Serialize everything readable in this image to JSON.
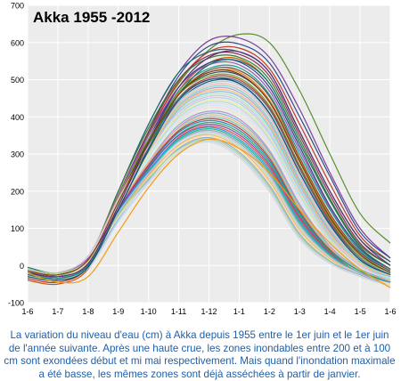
{
  "chart_data": {
    "type": "line",
    "title": "Akka 1955 -2012",
    "xlabel": "",
    "ylabel": "",
    "x_ticks": [
      "1-6",
      "1-7",
      "1-8",
      "1-9",
      "1-10",
      "1-11",
      "1-12",
      "1-1",
      "1-2",
      "1-3",
      "1-4",
      "1-5",
      "1-6"
    ],
    "xlim": [
      0,
      12
    ],
    "ylim": [
      -100,
      700
    ],
    "y_ticks": [
      -100,
      0,
      100,
      200,
      300,
      400,
      500,
      600,
      700
    ],
    "grid": true,
    "legend": "none",
    "series_count": 58,
    "peak_range": [
      340,
      625
    ],
    "series": [
      {
        "color": "#5b8c2e",
        "values": [
          -15,
          -30,
          5,
          170,
          355,
          490,
          580,
          622,
          600,
          470,
          300,
          140,
          60
        ]
      },
      {
        "color": "#7b3f98",
        "values": [
          -10,
          -25,
          10,
          200,
          380,
          520,
          605,
          612,
          560,
          420,
          250,
          100,
          20
        ]
      },
      {
        "color": "#2e4a8c",
        "values": [
          -20,
          -35,
          5,
          180,
          360,
          510,
          590,
          596,
          545,
          400,
          240,
          90,
          20
        ]
      },
      {
        "color": "#c0392b",
        "values": [
          -30,
          -40,
          0,
          175,
          350,
          495,
          575,
          585,
          530,
          380,
          220,
          80,
          10
        ]
      },
      {
        "color": "#1f6f6f",
        "values": [
          -5,
          -20,
          20,
          200,
          380,
          520,
          575,
          575,
          520,
          360,
          200,
          70,
          10
        ]
      },
      {
        "color": "#8c2e5b",
        "values": [
          -25,
          -30,
          10,
          190,
          360,
          500,
          565,
          568,
          510,
          350,
          190,
          60,
          0
        ]
      },
      {
        "color": "#3a7d3a",
        "values": [
          -20,
          -25,
          15,
          200,
          370,
          500,
          558,
          560,
          500,
          340,
          180,
          55,
          0
        ]
      },
      {
        "color": "#d35400",
        "values": [
          -40,
          -50,
          -10,
          150,
          320,
          470,
          545,
          555,
          490,
          330,
          175,
          50,
          -10
        ]
      },
      {
        "color": "#2c3e90",
        "values": [
          -15,
          -30,
          0,
          170,
          340,
          480,
          545,
          548,
          480,
          320,
          160,
          45,
          -10
        ]
      },
      {
        "color": "#9b59b6",
        "values": [
          -10,
          -25,
          20,
          190,
          350,
          480,
          540,
          540,
          470,
          310,
          155,
          40,
          -10
        ]
      },
      {
        "color": "#16a085",
        "values": [
          -20,
          -35,
          5,
          170,
          330,
          470,
          530,
          532,
          460,
          300,
          150,
          40,
          -15
        ]
      },
      {
        "color": "#6d4c41",
        "values": [
          -30,
          -40,
          -5,
          160,
          320,
          460,
          525,
          525,
          455,
          290,
          140,
          35,
          -15
        ]
      },
      {
        "color": "#e67e22",
        "values": [
          -25,
          -35,
          10,
          170,
          330,
          465,
          520,
          520,
          445,
          285,
          135,
          30,
          -20
        ]
      },
      {
        "color": "#34495e",
        "values": [
          -15,
          -30,
          10,
          175,
          335,
          460,
          515,
          512,
          440,
          280,
          130,
          30,
          -20
        ]
      },
      {
        "color": "#7a9f35",
        "values": [
          -10,
          -20,
          25,
          185,
          340,
          460,
          510,
          505,
          430,
          270,
          125,
          25,
          -20
        ]
      },
      {
        "color": "#b03a2e",
        "values": [
          -35,
          -45,
          -5,
          150,
          310,
          450,
          505,
          500,
          425,
          265,
          120,
          20,
          -25
        ]
      },
      {
        "color": "#5d6d7e",
        "values": [
          -20,
          -30,
          15,
          170,
          325,
          450,
          500,
          495,
          420,
          260,
          115,
          20,
          -25
        ]
      },
      {
        "color": "#1a5276",
        "values": [
          -25,
          -35,
          5,
          160,
          315,
          440,
          495,
          490,
          410,
          250,
          110,
          15,
          -25
        ]
      },
      {
        "color": "#a9cce3",
        "values": [
          -15,
          -25,
          20,
          175,
          320,
          440,
          490,
          485,
          405,
          245,
          105,
          15,
          -25
        ]
      },
      {
        "color": "#f5b7b1",
        "values": [
          -10,
          -25,
          25,
          180,
          320,
          435,
          485,
          478,
          400,
          240,
          100,
          10,
          -30
        ]
      },
      {
        "color": "#76d7c4",
        "values": [
          -20,
          -30,
          15,
          165,
          310,
          430,
          480,
          472,
          392,
          232,
          95,
          10,
          -30
        ]
      },
      {
        "color": "#c39bd3",
        "values": [
          -30,
          -40,
          5,
          155,
          300,
          425,
          475,
          466,
          385,
          225,
          90,
          5,
          -30
        ]
      },
      {
        "color": "#f8c471",
        "values": [
          -15,
          -25,
          20,
          170,
          310,
          425,
          470,
          460,
          378,
          220,
          85,
          5,
          -30
        ]
      },
      {
        "color": "#85c1e9",
        "values": [
          -25,
          -35,
          10,
          160,
          300,
          420,
          465,
          455,
          372,
          215,
          80,
          0,
          -30
        ]
      },
      {
        "color": "#abebc6",
        "values": [
          -20,
          -30,
          15,
          162,
          300,
          415,
          460,
          448,
          365,
          210,
          78,
          0,
          -35
        ]
      },
      {
        "color": "#d7bde2",
        "values": [
          -10,
          -20,
          25,
          172,
          305,
          412,
          455,
          442,
          358,
          205,
          75,
          0,
          -35
        ]
      },
      {
        "color": "#aed6f1",
        "values": [
          -30,
          -40,
          5,
          150,
          290,
          405,
          450,
          436,
          352,
          200,
          70,
          -5,
          -35
        ]
      },
      {
        "color": "#f9e79f",
        "values": [
          -15,
          -25,
          20,
          165,
          298,
          402,
          445,
          430,
          345,
          195,
          68,
          -5,
          -35
        ]
      },
      {
        "color": "#a3e4d7",
        "values": [
          -20,
          -30,
          12,
          158,
          292,
          398,
          440,
          424,
          340,
          190,
          65,
          -5,
          -35
        ]
      },
      {
        "color": "#e8daef",
        "values": [
          -25,
          -35,
          8,
          152,
          285,
          392,
          435,
          418,
          335,
          185,
          62,
          -5,
          -40
        ]
      },
      {
        "color": "#d4e6f1",
        "values": [
          -10,
          -20,
          22,
          165,
          292,
          390,
          430,
          412,
          330,
          180,
          60,
          -10,
          -40
        ]
      },
      {
        "color": "#fadbd8",
        "values": [
          -30,
          -40,
          0,
          145,
          278,
          385,
          425,
          405,
          322,
          175,
          58,
          -10,
          -40
        ]
      },
      {
        "color": "#d5f5e3",
        "values": [
          -15,
          -25,
          18,
          158,
          285,
          382,
          420,
          400,
          316,
          170,
          55,
          -10,
          -40
        ]
      },
      {
        "color": "#bb8fce",
        "values": [
          -20,
          -30,
          10,
          150,
          278,
          378,
          415,
          394,
          310,
          165,
          52,
          -10,
          -40
        ]
      },
      {
        "color": "#7fb3d5",
        "values": [
          -25,
          -35,
          5,
          146,
          272,
          372,
          410,
          388,
          305,
          160,
          50,
          -10,
          -40
        ]
      },
      {
        "color": "#f0b27a",
        "values": [
          -10,
          -20,
          20,
          158,
          278,
          370,
          405,
          382,
          300,
          155,
          48,
          -15,
          -40
        ]
      },
      {
        "color": "#73c6b6",
        "values": [
          -30,
          -40,
          -2,
          140,
          265,
          365,
          400,
          376,
          294,
          150,
          45,
          -15,
          -45
        ]
      },
      {
        "color": "#c0392b",
        "values": [
          -15,
          -25,
          15,
          150,
          270,
          362,
          395,
          370,
          288,
          145,
          42,
          -15,
          -45
        ]
      },
      {
        "color": "#2e86c1",
        "values": [
          -20,
          -30,
          10,
          145,
          265,
          358,
          390,
          364,
          282,
          140,
          40,
          -15,
          -45
        ]
      },
      {
        "color": "#27ae60",
        "values": [
          -25,
          -35,
          5,
          140,
          260,
          352,
          385,
          358,
          276,
          135,
          38,
          -15,
          -45
        ]
      },
      {
        "color": "#8e44ad",
        "values": [
          -10,
          -20,
          18,
          150,
          262,
          350,
          380,
          352,
          270,
          130,
          35,
          -20,
          -45
        ]
      },
      {
        "color": "#e74c3c",
        "values": [
          -30,
          -40,
          -5,
          132,
          252,
          345,
          375,
          346,
          264,
          125,
          32,
          -20,
          -45
        ]
      },
      {
        "color": "#3498db",
        "values": [
          -15,
          -25,
          12,
          142,
          255,
          342,
          372,
          340,
          258,
          120,
          30,
          -20,
          -45
        ]
      },
      {
        "color": "#1abc9c",
        "values": [
          -20,
          -30,
          8,
          138,
          250,
          338,
          368,
          335,
          252,
          115,
          28,
          -20,
          -50
        ]
      },
      {
        "color": "#9aa7b0",
        "values": [
          -25,
          -35,
          2,
          132,
          245,
          334,
          364,
          330,
          246,
          110,
          25,
          -20,
          -50
        ]
      },
      {
        "color": "#b4c7e7",
        "values": [
          -10,
          -20,
          15,
          142,
          248,
          332,
          360,
          325,
          240,
          105,
          22,
          -25,
          -50
        ]
      },
      {
        "color": "#c5e0b4",
        "values": [
          -30,
          -40,
          -5,
          125,
          238,
          326,
          356,
          320,
          234,
          100,
          20,
          -25,
          -50
        ]
      },
      {
        "color": "#f4b183",
        "values": [
          -15,
          -25,
          10,
          135,
          242,
          324,
          352,
          315,
          228,
          95,
          18,
          -25,
          -50
        ]
      },
      {
        "color": "#ffe699",
        "values": [
          -20,
          -30,
          6,
          130,
          236,
          320,
          348,
          310,
          222,
          90,
          15,
          -25,
          -50
        ]
      },
      {
        "color": "#8faadc",
        "values": [
          -25,
          -35,
          0,
          125,
          230,
          315,
          344,
          305,
          216,
          85,
          12,
          -25,
          -55
        ]
      },
      {
        "color": "#a9d18e",
        "values": [
          -10,
          -20,
          12,
          135,
          234,
          312,
          340,
          300,
          210,
          80,
          10,
          -30,
          -55
        ]
      },
      {
        "color": "#bdd7ee",
        "values": [
          -30,
          -40,
          -8,
          118,
          222,
          306,
          336,
          295,
          204,
          75,
          8,
          -30,
          -55
        ]
      },
      {
        "color": "#d9d9d9",
        "values": [
          -15,
          -25,
          8,
          128,
          226,
          304,
          332,
          290,
          198,
          70,
          5,
          -30,
          -55
        ]
      },
      {
        "color": "#5b2c6f",
        "values": [
          -20,
          -30,
          5,
          160,
          330,
          480,
          560,
          575,
          520,
          360,
          200,
          70,
          0
        ]
      },
      {
        "color": "#117a65",
        "values": [
          -25,
          -35,
          0,
          150,
          315,
          460,
          540,
          550,
          490,
          330,
          175,
          50,
          -10
        ]
      },
      {
        "color": "#784212",
        "values": [
          -15,
          -25,
          15,
          170,
          330,
          460,
          520,
          515,
          440,
          280,
          130,
          30,
          -20
        ]
      },
      {
        "color": "#1b4f72",
        "values": [
          -30,
          -40,
          -5,
          150,
          310,
          445,
          500,
          490,
          410,
          250,
          110,
          15,
          -25
        ]
      },
      {
        "color": "#f39c12",
        "values": [
          -20,
          -45,
          -30,
          90,
          210,
          300,
          340,
          315,
          250,
          150,
          60,
          -10,
          -60
        ]
      }
    ]
  },
  "caption": "La variation du niveau d'eau (cm) à Akka depuis 1955 entre le 1er juin et le 1er juin de l'année suivante. Après une haute crue, les zones inondables entre 200 et à 100 cm sont exondées début et mi mai respectivement. Mais quand l'inondation maximale a été basse, les mêmes zones sont déjà asséchées à partir de janvier."
}
